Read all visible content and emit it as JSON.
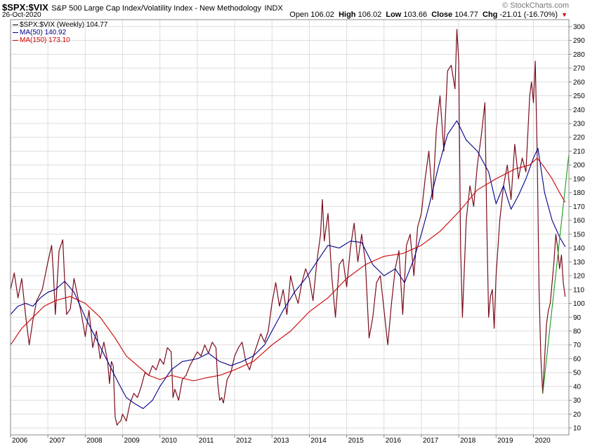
{
  "header": {
    "symbol": "$SPX:$VIX",
    "description": "S&P 500 Large Cap Index/Volatility Index - New Methodology",
    "exchange": "INDX",
    "date": "26-Oct-2020",
    "brand": "© StockCharts.com",
    "open_label": "Open",
    "open": "106.02",
    "high_label": "High",
    "high": "106.02",
    "low_label": "Low",
    "low": "103.66",
    "close_label": "Close",
    "close": "104.77",
    "chg_label": "Chg",
    "chg": "-21.01 (-16.70%)"
  },
  "legend": [
    {
      "text": "$SPX:$VIX (Weekly) 104.77",
      "color": "#000000"
    },
    {
      "text": "MA(50) 140.92",
      "color": "#00008b"
    },
    {
      "text": "MA(150) 173.10",
      "color": "#cc0000"
    }
  ],
  "chart_data": {
    "type": "line",
    "title": "$SPX:$VIX S&P 500 Large Cap Index/Volatility Index - New Methodology",
    "ylim": [
      5,
      305
    ],
    "xlim": [
      2006.0,
      2020.95
    ],
    "y_ticks": [
      10,
      20,
      30,
      40,
      50,
      60,
      70,
      80,
      90,
      100,
      110,
      120,
      130,
      140,
      150,
      160,
      170,
      180,
      190,
      200,
      210,
      220,
      230,
      240,
      250,
      260,
      270,
      280,
      290,
      300
    ],
    "x_ticks": [
      {
        "x": 2006.0,
        "label": "2006"
      },
      {
        "x": 2007.0,
        "label": "2007"
      },
      {
        "x": 2008.0,
        "label": "2008"
      },
      {
        "x": 2009.0,
        "label": "2009"
      },
      {
        "x": 2010.0,
        "label": "2010"
      },
      {
        "x": 2011.0,
        "label": "2011"
      },
      {
        "x": 2012.0,
        "label": "2012"
      },
      {
        "x": 2013.0,
        "label": "2013"
      },
      {
        "x": 2014.0,
        "label": "2014"
      },
      {
        "x": 2015.0,
        "label": "2015"
      },
      {
        "x": 2016.0,
        "label": "2016"
      },
      {
        "x": 2017.0,
        "label": "2017"
      },
      {
        "x": 2018.0,
        "label": "2018"
      },
      {
        "x": 2019.0,
        "label": "2019"
      },
      {
        "x": 2020.0,
        "label": "2020"
      }
    ],
    "grid": true,
    "series": [
      {
        "name": "$SPX:$VIX (Weekly)",
        "color": "#7a0d1c",
        "points": [
          [
            2006.0,
            110
          ],
          [
            2006.1,
            122
          ],
          [
            2006.2,
            104
          ],
          [
            2006.3,
            118
          ],
          [
            2006.4,
            92
          ],
          [
            2006.5,
            70
          ],
          [
            2006.6,
            88
          ],
          [
            2006.7,
            102
          ],
          [
            2006.85,
            110
          ],
          [
            2007.0,
            130
          ],
          [
            2007.1,
            142
          ],
          [
            2007.15,
            120
          ],
          [
            2007.2,
            92
          ],
          [
            2007.3,
            138
          ],
          [
            2007.4,
            146
          ],
          [
            2007.45,
            116
          ],
          [
            2007.5,
            92
          ],
          [
            2007.6,
            96
          ],
          [
            2007.7,
            118
          ],
          [
            2007.8,
            105
          ],
          [
            2007.9,
            92
          ],
          [
            2008.0,
            76
          ],
          [
            2008.1,
            95
          ],
          [
            2008.2,
            68
          ],
          [
            2008.3,
            80
          ],
          [
            2008.4,
            60
          ],
          [
            2008.5,
            72
          ],
          [
            2008.6,
            58
          ],
          [
            2008.65,
            42
          ],
          [
            2008.7,
            58
          ],
          [
            2008.75,
            55
          ],
          [
            2008.8,
            18
          ],
          [
            2008.85,
            12
          ],
          [
            2008.9,
            14
          ],
          [
            2008.95,
            15
          ],
          [
            2009.0,
            20
          ],
          [
            2009.1,
            15
          ],
          [
            2009.2,
            28
          ],
          [
            2009.3,
            35
          ],
          [
            2009.4,
            32
          ],
          [
            2009.5,
            40
          ],
          [
            2009.6,
            50
          ],
          [
            2009.7,
            48
          ],
          [
            2009.8,
            55
          ],
          [
            2009.9,
            52
          ],
          [
            2010.0,
            60
          ],
          [
            2010.1,
            56
          ],
          [
            2010.2,
            68
          ],
          [
            2010.3,
            65
          ],
          [
            2010.35,
            32
          ],
          [
            2010.4,
            38
          ],
          [
            2010.5,
            30
          ],
          [
            2010.6,
            45
          ],
          [
            2010.7,
            48
          ],
          [
            2010.8,
            55
          ],
          [
            2010.9,
            60
          ],
          [
            2011.0,
            65
          ],
          [
            2011.1,
            62
          ],
          [
            2011.2,
            70
          ],
          [
            2011.3,
            64
          ],
          [
            2011.4,
            72
          ],
          [
            2011.5,
            68
          ],
          [
            2011.55,
            42
          ],
          [
            2011.6,
            30
          ],
          [
            2011.65,
            32
          ],
          [
            2011.7,
            28
          ],
          [
            2011.8,
            45
          ],
          [
            2011.9,
            50
          ],
          [
            2012.0,
            62
          ],
          [
            2012.1,
            68
          ],
          [
            2012.2,
            72
          ],
          [
            2012.3,
            58
          ],
          [
            2012.4,
            52
          ],
          [
            2012.5,
            62
          ],
          [
            2012.6,
            70
          ],
          [
            2012.7,
            78
          ],
          [
            2012.8,
            72
          ],
          [
            2012.9,
            80
          ],
          [
            2013.0,
            100
          ],
          [
            2013.1,
            115
          ],
          [
            2013.2,
            98
          ],
          [
            2013.3,
            110
          ],
          [
            2013.4,
            92
          ],
          [
            2013.5,
            120
          ],
          [
            2013.6,
            108
          ],
          [
            2013.7,
            100
          ],
          [
            2013.8,
            115
          ],
          [
            2013.9,
            125
          ],
          [
            2014.0,
            118
          ],
          [
            2014.1,
            102
          ],
          [
            2014.2,
            130
          ],
          [
            2014.3,
            150
          ],
          [
            2014.35,
            175
          ],
          [
            2014.4,
            145
          ],
          [
            2014.5,
            165
          ],
          [
            2014.6,
            120
          ],
          [
            2014.7,
            90
          ],
          [
            2014.8,
            128
          ],
          [
            2014.9,
            132
          ],
          [
            2015.0,
            112
          ],
          [
            2015.1,
            140
          ],
          [
            2015.2,
            158
          ],
          [
            2015.3,
            130
          ],
          [
            2015.4,
            150
          ],
          [
            2015.5,
            130
          ],
          [
            2015.6,
            75
          ],
          [
            2015.7,
            90
          ],
          [
            2015.8,
            115
          ],
          [
            2015.9,
            120
          ],
          [
            2016.0,
            95
          ],
          [
            2016.1,
            70
          ],
          [
            2016.2,
            100
          ],
          [
            2016.3,
            125
          ],
          [
            2016.4,
            138
          ],
          [
            2016.5,
            92
          ],
          [
            2016.6,
            142
          ],
          [
            2016.7,
            150
          ],
          [
            2016.8,
            120
          ],
          [
            2016.9,
            155
          ],
          [
            2017.0,
            165
          ],
          [
            2017.1,
            190
          ],
          [
            2017.2,
            210
          ],
          [
            2017.3,
            175
          ],
          [
            2017.4,
            225
          ],
          [
            2017.5,
            250
          ],
          [
            2017.6,
            210
          ],
          [
            2017.7,
            268
          ],
          [
            2017.8,
            272
          ],
          [
            2017.9,
            255
          ],
          [
            2017.95,
            298
          ],
          [
            2018.0,
            275
          ],
          [
            2018.05,
            140
          ],
          [
            2018.1,
            90
          ],
          [
            2018.15,
            125
          ],
          [
            2018.2,
            160
          ],
          [
            2018.3,
            185
          ],
          [
            2018.4,
            170
          ],
          [
            2018.5,
            200
          ],
          [
            2018.6,
            220
          ],
          [
            2018.7,
            245
          ],
          [
            2018.75,
            160
          ],
          [
            2018.8,
            90
          ],
          [
            2018.85,
            105
          ],
          [
            2018.9,
            110
          ],
          [
            2018.95,
            82
          ],
          [
            2019.0,
            120
          ],
          [
            2019.1,
            160
          ],
          [
            2019.2,
            185
          ],
          [
            2019.3,
            200
          ],
          [
            2019.4,
            175
          ],
          [
            2019.5,
            215
          ],
          [
            2019.6,
            190
          ],
          [
            2019.7,
            205
          ],
          [
            2019.8,
            195
          ],
          [
            2019.9,
            250
          ],
          [
            2019.95,
            260
          ],
          [
            2020.0,
            245
          ],
          [
            2020.05,
            275
          ],
          [
            2020.1,
            210
          ],
          [
            2020.15,
            110
          ],
          [
            2020.2,
            60
          ],
          [
            2020.25,
            35
          ],
          [
            2020.3,
            60
          ],
          [
            2020.35,
            85
          ],
          [
            2020.4,
            95
          ],
          [
            2020.45,
            100
          ],
          [
            2020.5,
            115
          ],
          [
            2020.55,
            130
          ],
          [
            2020.6,
            150
          ],
          [
            2020.65,
            140
          ],
          [
            2020.7,
            125
          ],
          [
            2020.75,
            135
          ],
          [
            2020.8,
            115
          ],
          [
            2020.85,
            104.77
          ]
        ]
      },
      {
        "name": "MA(50)",
        "color": "#00008b",
        "points": [
          [
            2006.0,
            92
          ],
          [
            2006.2,
            98
          ],
          [
            2006.4,
            100
          ],
          [
            2006.6,
            98
          ],
          [
            2006.8,
            104
          ],
          [
            2007.0,
            108
          ],
          [
            2007.2,
            110
          ],
          [
            2007.45,
            116
          ],
          [
            2007.7,
            108
          ],
          [
            2008.0,
            90
          ],
          [
            2008.3,
            74
          ],
          [
            2008.6,
            58
          ],
          [
            2008.9,
            42
          ],
          [
            2009.1,
            32
          ],
          [
            2009.3,
            28
          ],
          [
            2009.55,
            24
          ],
          [
            2009.8,
            30
          ],
          [
            2010.0,
            40
          ],
          [
            2010.3,
            52
          ],
          [
            2010.6,
            58
          ],
          [
            2011.0,
            60
          ],
          [
            2011.3,
            64
          ],
          [
            2011.6,
            58
          ],
          [
            2011.9,
            55
          ],
          [
            2012.2,
            58
          ],
          [
            2012.5,
            62
          ],
          [
            2012.8,
            70
          ],
          [
            2013.0,
            80
          ],
          [
            2013.3,
            95
          ],
          [
            2013.6,
            108
          ],
          [
            2013.9,
            118
          ],
          [
            2014.2,
            130
          ],
          [
            2014.5,
            142
          ],
          [
            2014.8,
            140
          ],
          [
            2015.1,
            145
          ],
          [
            2015.4,
            144
          ],
          [
            2015.7,
            128
          ],
          [
            2016.0,
            120
          ],
          [
            2016.3,
            125
          ],
          [
            2016.55,
            115
          ],
          [
            2016.8,
            132
          ],
          [
            2017.0,
            150
          ],
          [
            2017.2,
            170
          ],
          [
            2017.45,
            198
          ],
          [
            2017.7,
            222
          ],
          [
            2017.95,
            232
          ],
          [
            2018.2,
            218
          ],
          [
            2018.5,
            210
          ],
          [
            2018.8,
            195
          ],
          [
            2019.0,
            172
          ],
          [
            2019.2,
            185
          ],
          [
            2019.4,
            168
          ],
          [
            2019.6,
            178
          ],
          [
            2019.8,
            190
          ],
          [
            2020.0,
            205
          ],
          [
            2020.12,
            212
          ],
          [
            2020.3,
            180
          ],
          [
            2020.5,
            160
          ],
          [
            2020.7,
            148
          ],
          [
            2020.85,
            140.92
          ]
        ]
      },
      {
        "name": "MA(150)",
        "color": "#cc0000",
        "points": [
          [
            2006.0,
            70
          ],
          [
            2006.3,
            82
          ],
          [
            2006.6,
            90
          ],
          [
            2006.9,
            98
          ],
          [
            2007.2,
            102
          ],
          [
            2007.6,
            105
          ],
          [
            2008.0,
            100
          ],
          [
            2008.4,
            90
          ],
          [
            2008.8,
            75
          ],
          [
            2009.1,
            62
          ],
          [
            2009.4,
            55
          ],
          [
            2009.7,
            48
          ],
          [
            2010.0,
            45
          ],
          [
            2010.3,
            48
          ],
          [
            2010.6,
            46
          ],
          [
            2010.9,
            44
          ],
          [
            2011.2,
            46
          ],
          [
            2011.6,
            48
          ],
          [
            2012.0,
            52
          ],
          [
            2012.5,
            58
          ],
          [
            2013.0,
            70
          ],
          [
            2013.5,
            80
          ],
          [
            2014.0,
            94
          ],
          [
            2014.5,
            104
          ],
          [
            2015.0,
            118
          ],
          [
            2015.5,
            128
          ],
          [
            2016.0,
            134
          ],
          [
            2016.5,
            136
          ],
          [
            2017.0,
            142
          ],
          [
            2017.5,
            152
          ],
          [
            2018.0,
            166
          ],
          [
            2018.5,
            182
          ],
          [
            2019.0,
            190
          ],
          [
            2019.5,
            197
          ],
          [
            2019.9,
            200
          ],
          [
            2020.1,
            205
          ],
          [
            2020.3,
            198
          ],
          [
            2020.5,
            190
          ],
          [
            2020.7,
            180
          ],
          [
            2020.85,
            173.1
          ]
        ]
      },
      {
        "name": "Trendline",
        "color": "#1a9a1a",
        "points": [
          [
            2020.25,
            35
          ],
          [
            2020.95,
            208
          ]
        ]
      }
    ]
  }
}
